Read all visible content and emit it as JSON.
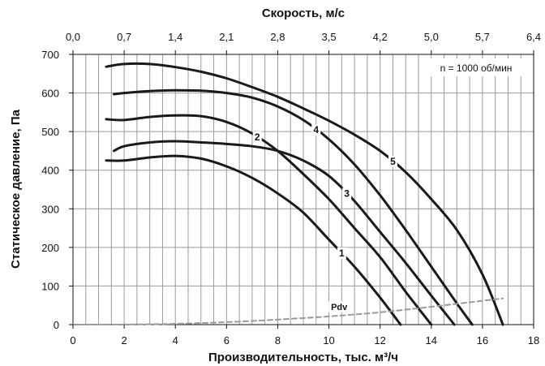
{
  "chart_data": {
    "type": "line",
    "xlabel": "Производительность, тыс. м³/ч",
    "ylabel": "Статическое давление, Па",
    "top_xlabel": "Скорость, м/с",
    "xlim": [
      0,
      18
    ],
    "ylim": [
      0,
      700
    ],
    "x_ticks": [
      "0",
      "2",
      "4",
      "6",
      "8",
      "10",
      "12",
      "14",
      "16",
      "18"
    ],
    "y_ticks": [
      "0",
      "100",
      "200",
      "300",
      "400",
      "500",
      "600",
      "700"
    ],
    "top_ticks": [
      "0,0",
      "0,7",
      "1,4",
      "2,1",
      "2,8",
      "3,5",
      "4,2",
      "5,0",
      "5,7",
      "6,4"
    ],
    "grid": true,
    "annotation": "n = 1000 об/мин",
    "series": [
      {
        "name": "1",
        "x": [
          1.3,
          2.0,
          3.0,
          4.0,
          5.0,
          6.0,
          7.0,
          8.0,
          9.0,
          10.0,
          11.0,
          12.0,
          12.8
        ],
        "y": [
          425,
          425,
          433,
          437,
          430,
          410,
          380,
          340,
          290,
          220,
          150,
          70,
          0
        ]
      },
      {
        "name": "2",
        "x": [
          1.3,
          2.0,
          3.0,
          4.0,
          5.0,
          6.0,
          7.0,
          8.0,
          9.0,
          10.0,
          11.0,
          12.0,
          13.0,
          14.0
        ],
        "y": [
          532,
          530,
          538,
          542,
          540,
          525,
          495,
          450,
          390,
          325,
          250,
          175,
          85,
          0
        ]
      },
      {
        "name": "3",
        "x": [
          1.6,
          2.0,
          3.0,
          4.0,
          5.0,
          6.0,
          7.0,
          8.0,
          9.0,
          10.0,
          11.0,
          12.0,
          13.0,
          14.0,
          14.9
        ],
        "y": [
          450,
          462,
          472,
          475,
          472,
          468,
          462,
          450,
          425,
          385,
          320,
          240,
          160,
          75,
          0
        ]
      },
      {
        "name": "4",
        "x": [
          1.6,
          2.0,
          3.0,
          4.0,
          5.0,
          6.0,
          7.0,
          8.0,
          9.0,
          10.0,
          11.0,
          12.0,
          13.0,
          14.0,
          15.0,
          15.6
        ],
        "y": [
          597,
          600,
          605,
          607,
          606,
          600,
          588,
          565,
          530,
          480,
          415,
          335,
          245,
          150,
          55,
          0
        ]
      },
      {
        "name": "5",
        "x": [
          1.3,
          2.0,
          3.0,
          4.0,
          5.0,
          6.0,
          7.0,
          8.0,
          9.0,
          10.0,
          11.0,
          12.0,
          13.0,
          14.0,
          15.0,
          16.0,
          16.8
        ],
        "y": [
          668,
          675,
          675,
          667,
          655,
          638,
          615,
          590,
          560,
          528,
          492,
          450,
          395,
          325,
          245,
          130,
          0
        ]
      },
      {
        "name": "Pdv",
        "x": [
          0,
          4,
          8,
          12,
          16.8
        ],
        "y": [
          0,
          2,
          13,
          32,
          68
        ]
      }
    ]
  }
}
